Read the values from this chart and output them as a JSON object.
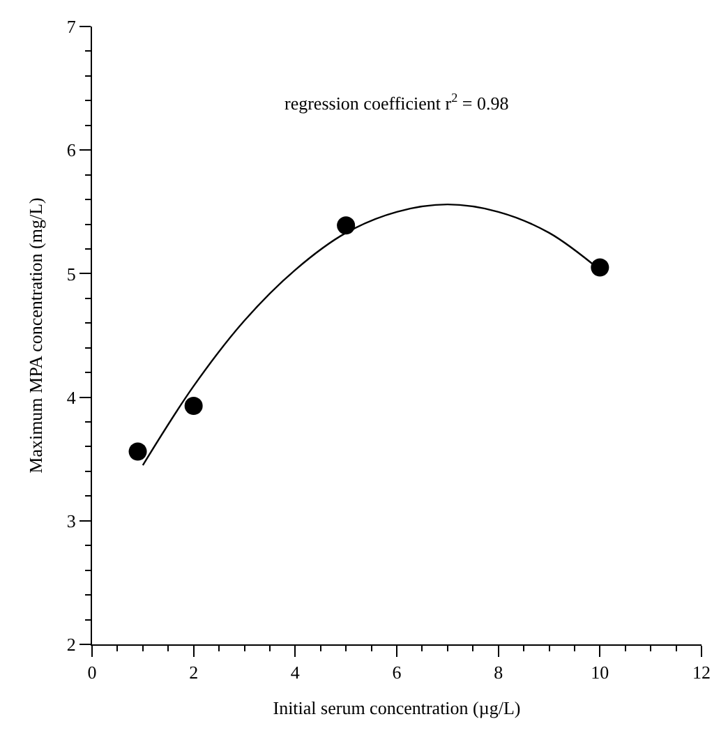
{
  "chart_data": {
    "type": "scatter",
    "xlabel": "Initial serum concentration (µg/L)",
    "ylabel": "Maximum MPA concentration (mg/L)",
    "annotations": [
      "regression coefficient r$^{2}$ = 0.98"
    ],
    "xlim": [
      0,
      12
    ],
    "xticks": [
      0,
      2,
      4,
      6,
      8,
      10,
      12
    ],
    "ylim": [
      2,
      7
    ],
    "yticks": [
      2,
      3,
      4,
      5,
      6,
      7
    ],
    "grid": false,
    "marker": "circle",
    "series": [
      {
        "color": "#000000",
        "x": [
          0.9,
          2.0,
          5.0,
          10.0
        ],
        "values": [
          3.56,
          3.93,
          5.39,
          5.05
        ]
      },
      {
        "type": "line",
        "color": "#000000",
        "line_style": "solid",
        "marker": "none",
        "x": [
          1,
          2,
          3,
          4,
          5,
          6,
          7,
          8,
          9,
          10
        ],
        "values": [
          3.45,
          4.09,
          4.62,
          5.03,
          5.33,
          5.5,
          5.56,
          5.5,
          5.33,
          5.03
        ]
      }
    ]
  }
}
